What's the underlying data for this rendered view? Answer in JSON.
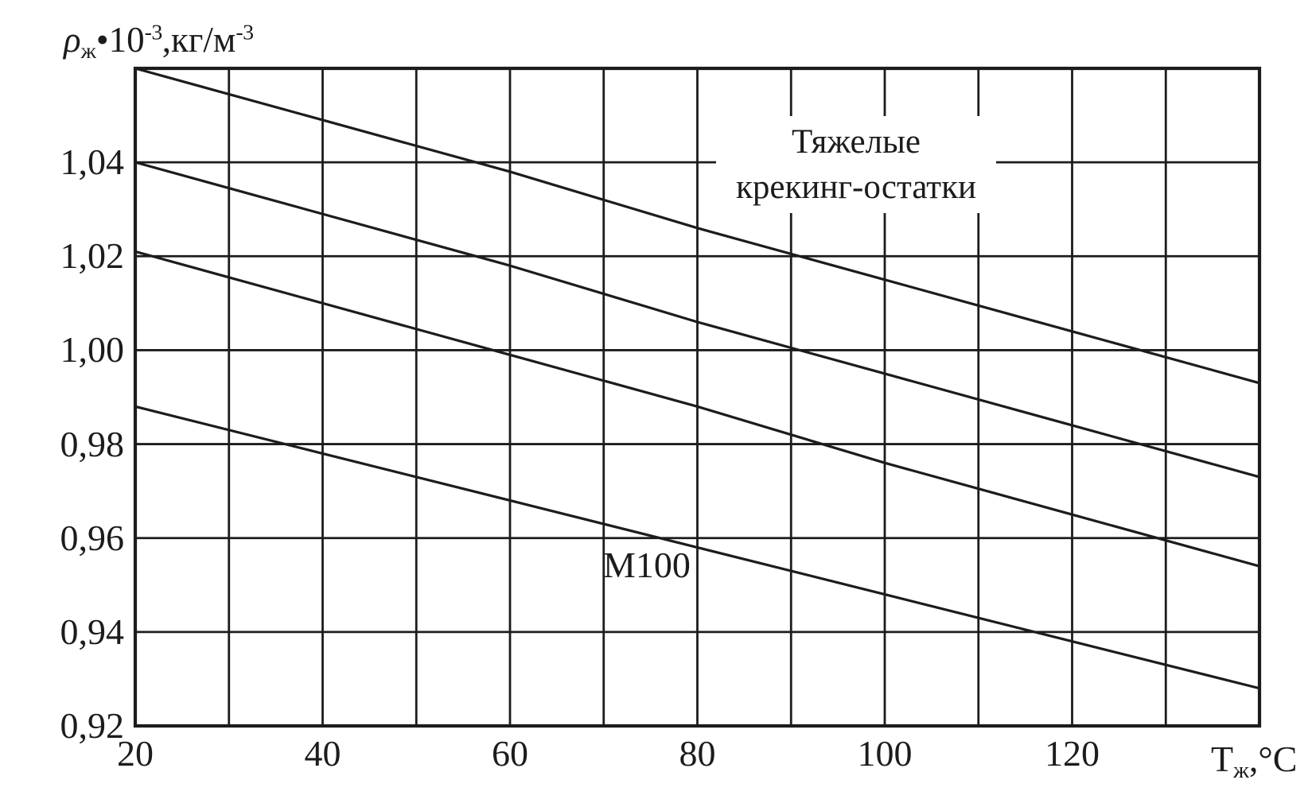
{
  "chart_data": {
    "type": "line",
    "title": "",
    "xlabel_text": "Тж,°С",
    "ylabel_text": "ρж•10⁻³,кг/м⁻³",
    "xlabel_parts": {
      "t": "Т",
      "t_sub": "ж",
      "rest": ",°С"
    },
    "ylabel_parts": {
      "rho": "ρ",
      "rho_sub": "ж",
      "factor": "•10",
      "factor_exp": "-3",
      "units": ",кг/м",
      "units_exp": "-3"
    },
    "x_range": [
      20,
      140
    ],
    "y_range": [
      0.92,
      1.06
    ],
    "x_grid_step": 10,
    "y_grid_step": 0.02,
    "grid": true,
    "legend_position": "none",
    "xtick_labels": [
      {
        "value": 20,
        "label": "20"
      },
      {
        "value": 40,
        "label": "40"
      },
      {
        "value": 60,
        "label": "60"
      },
      {
        "value": 80,
        "label": "80"
      },
      {
        "value": 100,
        "label": "100"
      },
      {
        "value": 120,
        "label": "120"
      }
    ],
    "ytick_labels": [
      {
        "value": 1.04,
        "label": "1,04"
      },
      {
        "value": 1.02,
        "label": "1,02"
      },
      {
        "value": 1.0,
        "label": "1,00"
      },
      {
        "value": 0.98,
        "label": "0,98"
      },
      {
        "value": 0.96,
        "label": "0,96"
      },
      {
        "value": 0.94,
        "label": "0,94"
      },
      {
        "value": 0.92,
        "label": "0,92"
      }
    ],
    "x": [
      20,
      40,
      60,
      80,
      100,
      120,
      140
    ],
    "series": [
      {
        "name": "Тяжелые крекинг-остатки — 1",
        "values": [
          1.06,
          1.049,
          1.038,
          1.026,
          1.015,
          1.004,
          0.993
        ]
      },
      {
        "name": "Тяжелые крекинг-остатки — 2",
        "values": [
          1.04,
          1.029,
          1.018,
          1.006,
          0.995,
          0.984,
          0.973
        ]
      },
      {
        "name": "Тяжелые крекинг-остатки — 3",
        "values": [
          1.021,
          1.01,
          0.999,
          0.988,
          0.976,
          0.965,
          0.954
        ]
      },
      {
        "name": "М100",
        "values": [
          0.988,
          0.978,
          0.968,
          0.958,
          0.948,
          0.938,
          0.928
        ]
      }
    ],
    "annotations": {
      "heavy_residues": {
        "line1": "Тяжелые",
        "line2": "крекинг-остатки"
      },
      "m100": {
        "label": "М100"
      }
    },
    "style": {
      "ink": "#1c1c1c",
      "background": "#ffffff"
    }
  }
}
